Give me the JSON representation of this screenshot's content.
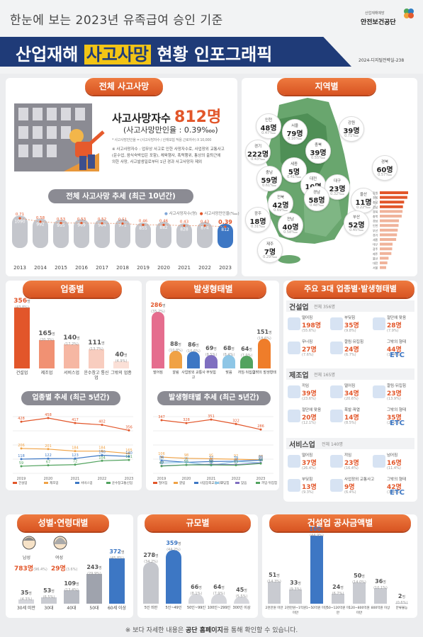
{
  "header": {
    "subtitle": "한눈에 보는 2023년 유족급여 승인 기준",
    "title_a": "산업재해 ",
    "title_b": "사고사망",
    "title_c": " 현황 인포그래픽",
    "org_small": "산업재해예방",
    "org": "안전보건공단",
    "code": "2024-디지털전략실-238"
  },
  "total": {
    "pill": "전체 사고사망",
    "label": "사고사망자수 ",
    "value": "812명",
    "rate": "(사고사망만인율 : 0.39‱)",
    "formula": "* 사고사망만인율 = (사고사망자수 / 산재보험 적용 근로자수) X 10,000",
    "note": "※ 사고사망자수 : 업무상 사고로 인한 사망자수로, 사업장외 교통사고(운수업, 음식숙박업은 포함), 체육행사, 폭력행위, 통상의 출퇴근에 의한 사망, 사고발생일로부터 1년 경과 사고사망자 제외"
  },
  "trend10": {
    "pill": "전체 사고사망 추세 (최근 10년간)",
    "legend_a": "사고사망자수(명)",
    "legend_b": "사고사망만인율(‱)",
    "years": [
      "2013",
      "2014",
      "2015",
      "2016",
      "2017",
      "2018",
      "2019",
      "2020",
      "2021",
      "2022",
      "2023"
    ],
    "deaths": [
      1090,
      992,
      955,
      969,
      964,
      971,
      855,
      882,
      828,
      874,
      812
    ],
    "rates": [
      0.71,
      0.58,
      0.53,
      0.53,
      0.52,
      0.51,
      0.46,
      0.46,
      0.43,
      0.43,
      0.39
    ]
  },
  "region": {
    "pill": "지역별",
    "items": [
      {
        "name": "인천",
        "v": "48명",
        "r": "0.47‱"
      },
      {
        "name": "서울",
        "v": "79명",
        "r": "0.16‱"
      },
      {
        "name": "강원",
        "v": "39명",
        "r": "0.71‱"
      },
      {
        "name": "경기",
        "v": "222명",
        "r": "0.43‱"
      },
      {
        "name": "충북",
        "v": "39명",
        "r": "0.55‱"
      },
      {
        "name": "세종",
        "v": "5명",
        "r": "0.41‱"
      },
      {
        "name": "경북",
        "v": "60명",
        "r": "0.57‱"
      },
      {
        "name": "충남",
        "v": "59명",
        "r": "0.61‱"
      },
      {
        "name": "대전",
        "v": "10명",
        "r": "0.19‱"
      },
      {
        "name": "전북",
        "v": "42명",
        "r": "0.69‱"
      },
      {
        "name": "대구",
        "v": "23명",
        "r": "0.32‱"
      },
      {
        "name": "울산",
        "v": "11명",
        "r": "0.22‱"
      },
      {
        "name": "광주",
        "v": "18명",
        "r": "0.31‱"
      },
      {
        "name": "경남",
        "v": "58명",
        "r": "0.48‱"
      },
      {
        "name": "전남",
        "v": "40명",
        "r": "0.58‱"
      },
      {
        "name": "부산",
        "v": "52명",
        "r": "0.45‱"
      },
      {
        "name": "제주",
        "v": "7명",
        "r": "0.29‱"
      }
    ]
  },
  "industry": {
    "pill": "업종별",
    "items": [
      {
        "name": "건설업",
        "v": "356",
        "u": "명",
        "p": "(43.8%)"
      },
      {
        "name": "제조업",
        "v": "165",
        "u": "명",
        "p": "(20.3%)"
      },
      {
        "name": "서비스업",
        "v": "140",
        "u": "명",
        "p": "(17.2%)"
      },
      {
        "name": "운수창고 통신업",
        "v": "111",
        "u": "명",
        "p": "(13.7%)"
      },
      {
        "name": "그밖의 업종",
        "v": "40",
        "u": "명",
        "p": "(4.9%)"
      }
    ],
    "trend_pill": "업종별 추세 (최근 5년간)",
    "years": [
      "2019",
      "2020",
      "2021",
      "2022",
      "2023"
    ],
    "series": [
      {
        "name": "건설업",
        "values": [
          428,
          458,
          417,
          402,
          356
        ]
      },
      {
        "name": "제조업",
        "values": [
          206,
          201,
          184,
          184,
          165
        ]
      },
      {
        "name": "서비스업",
        "values": [
          118,
          122,
          123,
          150,
          140
        ]
      },
      {
        "name": "운수창고통신업",
        "values": [
          59,
          67,
          72,
          104,
          111
        ]
      }
    ]
  },
  "accident": {
    "pill": "발생형태별",
    "items": [
      {
        "name": "떨어짐",
        "v": "286",
        "u": "명",
        "p": "(35.2%)"
      },
      {
        "name": "깔림",
        "v": "88",
        "u": "명",
        "p": "(10.8%)"
      },
      {
        "name": "사업장외 교통사고",
        "v": "86",
        "u": "명",
        "p": "(10.6%)"
      },
      {
        "name": "부딪힘",
        "v": "69",
        "u": "명",
        "p": "(8.5%)"
      },
      {
        "name": "맞음",
        "v": "68",
        "u": "명",
        "p": "(8.4%)"
      },
      {
        "name": "끼임·뒤집힘",
        "v": "64",
        "u": "명",
        "p": "(7.9%)"
      },
      {
        "name": "그밖의 발생형태",
        "v": "151",
        "u": "명",
        "p": "(18.6%)"
      }
    ],
    "trend_pill": "발생형태별 추세 (최근 5년간)",
    "years": [
      "2019",
      "2020",
      "2021",
      "2022",
      "2023"
    ],
    "series": [
      {
        "name": "떨어짐",
        "values": [
          347,
          328,
          351,
          322,
          286
        ]
      },
      {
        "name": "깔림",
        "values": [
          106,
          98,
          95,
          92,
          88
        ]
      },
      {
        "name": "사업장외교통사고",
        "values": [
          84,
          72,
          77,
          79,
          86
        ]
      },
      {
        "name": "부딪힘",
        "values": [
          67,
          72,
          52,
          77,
          69
        ]
      },
      {
        "name": "맞음",
        "values": [
          49,
          55,
          59,
          57,
          68
        ]
      },
      {
        "name": "끼임·뒤집힘",
        "values": [
          47,
          55,
          55,
          53,
          64
        ]
      }
    ]
  },
  "top3": {
    "pill": "주요 3대 업종별·발생형태별",
    "groups": [
      {
        "name": "건설업",
        "total": "전체 356명",
        "items": [
          {
            "n": "떨어짐",
            "v": "198명",
            "p": "(55.6%)"
          },
          {
            "n": "부딪힘",
            "v": "35명",
            "p": "(9.8%)"
          },
          {
            "n": "절단에 맞음",
            "v": "28명",
            "p": "(7.9%)"
          },
          {
            "n": "무너짐",
            "v": "27명",
            "p": "(7.6%)"
          },
          {
            "n": "깔림·뒤집힘",
            "v": "24명",
            "p": "(6.7%)"
          },
          {
            "n": "그밖의 형태",
            "v": "44명",
            "p": "(12.4%)"
          }
        ]
      },
      {
        "name": "제조업",
        "total": "전체 165명",
        "items": [
          {
            "n": "끼임",
            "v": "39명",
            "p": "(23.6%)"
          },
          {
            "n": "떨어짐",
            "v": "34명",
            "p": "(20.6%)"
          },
          {
            "n": "깔림·뒤집힘",
            "v": "23명",
            "p": "(13.9%)"
          },
          {
            "n": "절단에 맞음",
            "v": "20명",
            "p": "(12.1%)"
          },
          {
            "n": "폭발·파열",
            "v": "14명",
            "p": "(8.5%)"
          },
          {
            "n": "그밖의 형태",
            "v": "35명",
            "p": "(21.2%)"
          }
        ]
      },
      {
        "name": "서비스업",
        "total": "전체 140명",
        "items": [
          {
            "n": "떨어짐",
            "v": "37명",
            "p": "(26.4%)"
          },
          {
            "n": "끼임",
            "v": "23명",
            "p": "(16.4%)"
          },
          {
            "n": "넘어짐",
            "v": "16명",
            "p": "(11.4%)"
          },
          {
            "n": "부딪힘",
            "v": "13명",
            "p": "(9.3%)"
          },
          {
            "n": "사업장외 교통사고",
            "v": "9명",
            "p": "(6.4%)"
          },
          {
            "n": "그밖의 형태",
            "v": "42명",
            "p": "(30.0%)"
          }
        ]
      }
    ],
    "etc": "ETC"
  },
  "gender_age": {
    "pill": "성별·연령대별",
    "male": "남성",
    "male_v": "783명",
    "male_p": "(96.4%)",
    "female": "여성",
    "female_v": "29명",
    "female_p": "(3.6%)",
    "items": [
      {
        "name": "30세 미만",
        "v": "35",
        "u": "명",
        "p": "(4.3%)"
      },
      {
        "name": "30대",
        "v": "53",
        "u": "명",
        "p": "(6.5%)"
      },
      {
        "name": "40대",
        "v": "109",
        "u": "명",
        "p": "(13.4%)"
      },
      {
        "name": "50대",
        "v": "243",
        "u": "명",
        "p": "(29.9%)"
      },
      {
        "name": "60세 이상",
        "v": "372",
        "u": "명",
        "p": "(45.8%)"
      }
    ]
  },
  "size": {
    "pill": "규모별",
    "items": [
      {
        "name": "5인 미만",
        "v": "278",
        "u": "명",
        "p": "(34.2%)"
      },
      {
        "name": "5인~49인",
        "v": "359",
        "u": "명",
        "p": "(44.2%)"
      },
      {
        "name": "50인~99인",
        "v": "66",
        "u": "명",
        "p": "(8.1%)"
      },
      {
        "name": "100인~299인",
        "v": "64",
        "u": "명",
        "p": "(7.9%)"
      },
      {
        "name": "300인 이상",
        "v": "45",
        "u": "명",
        "p": "(5.5%)"
      }
    ]
  },
  "construction": {
    "pill": "건설업 공사금액별",
    "items": [
      {
        "name": "2천만원 미만",
        "v": "51",
        "u": "명",
        "p": "(14.3%)"
      },
      {
        "name": "2천만원~1억원 미만",
        "v": "33",
        "u": "명",
        "p": "(9.3%)"
      },
      {
        "name": "1~50억원 미만",
        "v": "160",
        "u": "명",
        "p": "(44.9%)"
      },
      {
        "name": "50~120억원 미만",
        "v": "24",
        "u": "명",
        "p": "(6.7%)"
      },
      {
        "name": "120~800억원 미만",
        "v": "50",
        "u": "명",
        "p": "(14.0%)"
      },
      {
        "name": "800억원 이상",
        "v": "36",
        "u": "명",
        "p": "(10.1%)"
      },
      {
        "name": "분류불능",
        "v": "2",
        "u": "명",
        "p": "(0.6%)"
      }
    ]
  },
  "footer": {
    "a": "※ 보다 자세한 내용은 ",
    "b": "공단 홈페이지",
    "c": "를 통해 확인할 수 있습니다."
  },
  "colors": {
    "orange": "#e2562a",
    "blue": "#3d77c4",
    "gray": "#bfbfc4",
    "pink": "#e56d8e",
    "green": "#52a35f"
  }
}
